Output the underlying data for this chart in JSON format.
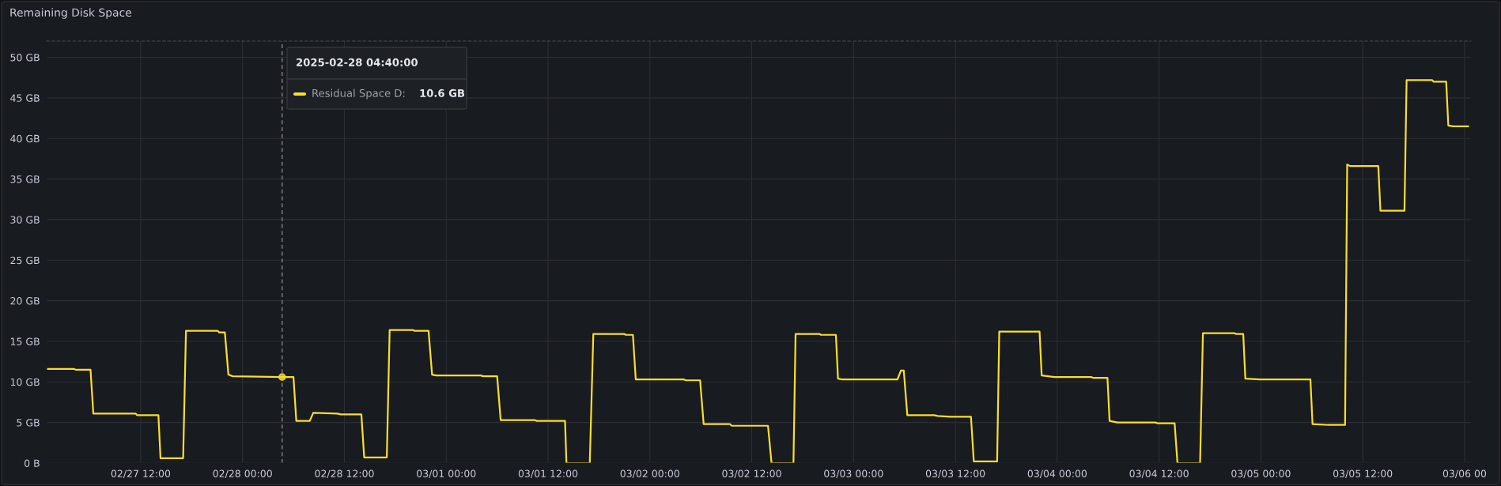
{
  "chart_data": {
    "type": "line",
    "title": "Remaining Disk Space",
    "x": [
      "2025-02-27T00:57",
      "2025-02-27T04:10",
      "2025-02-27T04:20",
      "2025-02-27T06:05",
      "2025-02-27T06:25",
      "2025-02-27T11:25",
      "2025-02-27T11:35",
      "2025-02-27T14:05",
      "2025-02-27T14:20",
      "2025-02-27T17:00",
      "2025-02-27T17:20",
      "2025-02-27T21:05",
      "2025-02-27T21:15",
      "2025-02-27T21:55",
      "2025-02-27T22:20",
      "2025-02-27T22:50",
      "2025-02-28T04:40",
      "2025-02-28T06:00",
      "2025-02-28T06:20",
      "2025-02-28T07:55",
      "2025-02-28T08:20",
      "2025-02-28T11:10",
      "2025-02-28T11:35",
      "2025-02-28T14:00",
      "2025-02-28T14:20",
      "2025-02-28T17:00",
      "2025-02-28T17:20",
      "2025-02-28T20:05",
      "2025-02-28T20:15",
      "2025-02-28T21:55",
      "2025-02-28T22:20",
      "2025-02-28T22:50",
      "2025-03-01T04:05",
      "2025-03-01T04:20",
      "2025-03-01T06:00",
      "2025-03-01T06:25",
      "2025-03-01T10:25",
      "2025-03-01T10:40",
      "2025-03-01T14:00",
      "2025-03-01T14:10",
      "2025-03-01T16:55",
      "2025-03-01T17:20",
      "2025-03-01T21:00",
      "2025-03-01T21:10",
      "2025-03-01T22:00",
      "2025-03-01T22:20",
      "2025-03-02T04:00",
      "2025-03-02T04:15",
      "2025-03-02T05:55",
      "2025-03-02T06:20",
      "2025-03-02T09:25",
      "2025-03-02T09:40",
      "2025-03-02T13:55",
      "2025-03-02T14:20",
      "2025-03-02T16:55",
      "2025-03-02T17:10",
      "2025-03-02T20:00",
      "2025-03-02T20:10",
      "2025-03-02T21:55",
      "2025-03-02T22:10",
      "2025-03-02T22:40",
      "2025-03-03T05:10",
      "2025-03-03T05:35",
      "2025-03-03T05:55",
      "2025-03-03T06:20",
      "2025-03-03T09:30",
      "2025-03-03T09:55",
      "2025-03-03T11:25",
      "2025-03-03T13:50",
      "2025-03-03T14:10",
      "2025-03-03T16:55",
      "2025-03-03T17:10",
      "2025-03-03T21:55",
      "2025-03-03T22:10",
      "2025-03-03T23:40",
      "2025-03-04T04:00",
      "2025-03-04T04:15",
      "2025-03-04T05:55",
      "2025-03-04T06:10",
      "2025-03-04T07:05",
      "2025-03-04T11:35",
      "2025-03-04T11:50",
      "2025-03-04T13:50",
      "2025-03-04T14:10",
      "2025-03-04T16:50",
      "2025-03-04T17:10",
      "2025-03-04T20:55",
      "2025-03-04T21:05",
      "2025-03-04T21:55",
      "2025-03-04T22:10",
      "2025-03-04T23:50",
      "2025-03-05T05:50",
      "2025-03-05T06:05",
      "2025-03-05T07:55",
      "2025-03-05T09:55",
      "2025-03-05T10:10",
      "2025-03-05T10:30",
      "2025-03-05T13:50",
      "2025-03-05T14:05",
      "2025-03-05T16:55",
      "2025-03-05T17:10",
      "2025-03-05T20:10",
      "2025-03-05T20:20",
      "2025-03-05T21:50",
      "2025-03-05T22:05",
      "2025-03-05T22:40",
      "2025-03-06T00:25"
    ],
    "series": [
      {
        "name": "Residual Space D:",
        "color": "#fade2a",
        "values": [
          11.6,
          11.6,
          11.5,
          11.5,
          6.1,
          6.1,
          5.9,
          5.9,
          0.6,
          0.6,
          16.3,
          16.3,
          16.1,
          16.1,
          10.9,
          10.7,
          10.6,
          10.6,
          5.2,
          5.2,
          6.2,
          6.1,
          6.0,
          6.0,
          0.7,
          0.7,
          16.4,
          16.4,
          16.3,
          16.3,
          10.9,
          10.8,
          10.8,
          10.7,
          10.7,
          5.3,
          5.3,
          5.2,
          5.2,
          0,
          0,
          15.9,
          15.9,
          15.8,
          15.8,
          10.3,
          10.3,
          10.2,
          10.2,
          4.8,
          4.8,
          4.6,
          4.6,
          0,
          0,
          15.9,
          15.9,
          15.8,
          15.8,
          10.4,
          10.3,
          10.3,
          11.4,
          11.4,
          5.9,
          5.9,
          5.8,
          5.7,
          5.7,
          0.2,
          0.2,
          16.2,
          16.2,
          10.8,
          10.6,
          10.6,
          10.5,
          10.5,
          5.2,
          5.0,
          5.0,
          4.9,
          4.9,
          0,
          0,
          16.0,
          16.0,
          15.9,
          15.9,
          10.4,
          10.3,
          10.3,
          4.8,
          4.7,
          4.7,
          36.8,
          36.6,
          36.6,
          31.1,
          31.1,
          47.2,
          47.2,
          47.0,
          47.0,
          41.6,
          41.5,
          41.5
        ]
      }
    ],
    "xlim": [
      "2025-02-27T00:55",
      "2025-03-06T00:45"
    ],
    "xticks": [
      {
        "value": "2025-02-27T12:00",
        "label": "02/27 12:00"
      },
      {
        "value": "2025-02-28T00:00",
        "label": "02/28 00:00"
      },
      {
        "value": "2025-02-28T12:00",
        "label": "02/28 12:00"
      },
      {
        "value": "2025-03-01T00:00",
        "label": "03/01 00:00"
      },
      {
        "value": "2025-03-01T12:00",
        "label": "03/01 12:00"
      },
      {
        "value": "2025-03-02T00:00",
        "label": "03/02 00:00"
      },
      {
        "value": "2025-03-02T12:00",
        "label": "03/02 12:00"
      },
      {
        "value": "2025-03-03T00:00",
        "label": "03/03 00:00"
      },
      {
        "value": "2025-03-03T12:00",
        "label": "03/03 12:00"
      },
      {
        "value": "2025-03-04T00:00",
        "label": "03/04 00:00"
      },
      {
        "value": "2025-03-04T12:00",
        "label": "03/04 12:00"
      },
      {
        "value": "2025-03-05T00:00",
        "label": "03/05 00:00"
      },
      {
        "value": "2025-03-05T12:00",
        "label": "03/05 12:00"
      },
      {
        "value": "2025-03-06T00:00",
        "label": "03/06 00"
      }
    ],
    "ylim": [
      0,
      52
    ],
    "yticks": [
      {
        "value": 0,
        "label": "0 B"
      },
      {
        "value": 5,
        "label": "5 GB"
      },
      {
        "value": 10,
        "label": "10 GB"
      },
      {
        "value": 15,
        "label": "15 GB"
      },
      {
        "value": 20,
        "label": "20 GB"
      },
      {
        "value": 25,
        "label": "25 GB"
      },
      {
        "value": 30,
        "label": "30 GB"
      },
      {
        "value": 35,
        "label": "35 GB"
      },
      {
        "value": 40,
        "label": "40 GB"
      },
      {
        "value": 45,
        "label": "45 GB"
      },
      {
        "value": 50,
        "label": "50 GB"
      }
    ],
    "grid": true,
    "ref_lines": [
      {
        "axis": "x",
        "value": "2025-02-28T04:40",
        "color": "#8e8e99",
        "line_style": "dashed"
      }
    ],
    "annotations": [
      {
        "text": "2025-02-28 04:40:00"
      },
      "10.6 GB"
    ]
  }
}
